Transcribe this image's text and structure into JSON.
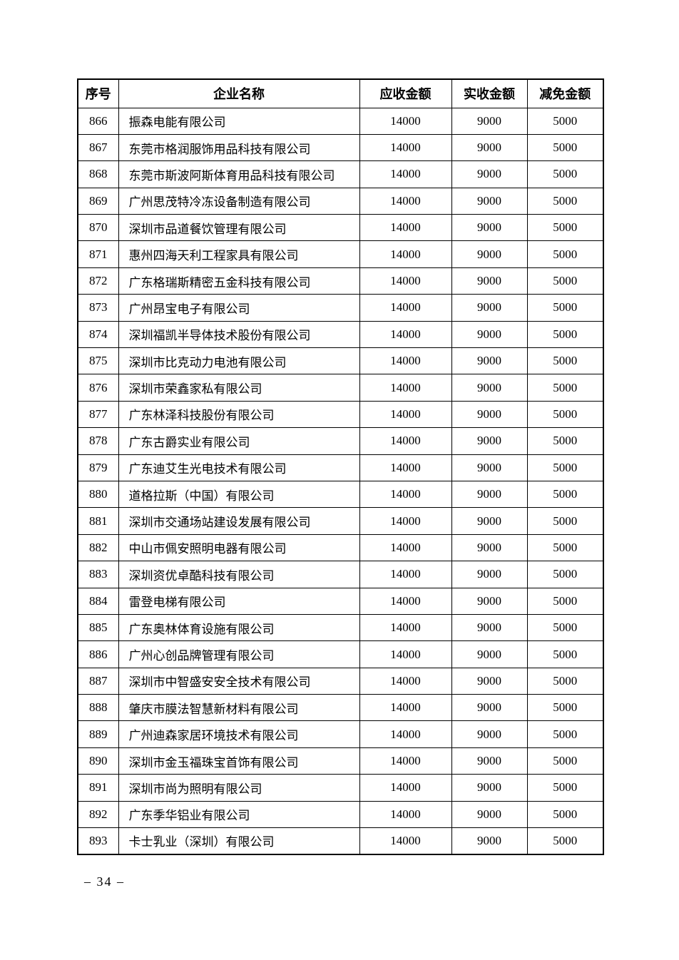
{
  "table": {
    "headers": [
      "序号",
      "企业名称",
      "应收金额",
      "实收金额",
      "减免金额"
    ],
    "rows": [
      {
        "no": "866",
        "company": "振森电能有限公司",
        "receivable": "14000",
        "received": "9000",
        "reduction": "5000"
      },
      {
        "no": "867",
        "company": "东莞市格润服饰用品科技有限公司",
        "receivable": "14000",
        "received": "9000",
        "reduction": "5000"
      },
      {
        "no": "868",
        "company": "东莞市斯波阿斯体育用品科技有限公司",
        "receivable": "14000",
        "received": "9000",
        "reduction": "5000"
      },
      {
        "no": "869",
        "company": "广州思茂特冷冻设备制造有限公司",
        "receivable": "14000",
        "received": "9000",
        "reduction": "5000"
      },
      {
        "no": "870",
        "company": "深圳市品道餐饮管理有限公司",
        "receivable": "14000",
        "received": "9000",
        "reduction": "5000"
      },
      {
        "no": "871",
        "company": "惠州四海天利工程家具有限公司",
        "receivable": "14000",
        "received": "9000",
        "reduction": "5000"
      },
      {
        "no": "872",
        "company": "广东格瑞斯精密五金科技有限公司",
        "receivable": "14000",
        "received": "9000",
        "reduction": "5000"
      },
      {
        "no": "873",
        "company": "广州昂宝电子有限公司",
        "receivable": "14000",
        "received": "9000",
        "reduction": "5000"
      },
      {
        "no": "874",
        "company": "深圳福凯半导体技术股份有限公司",
        "receivable": "14000",
        "received": "9000",
        "reduction": "5000"
      },
      {
        "no": "875",
        "company": "深圳市比克动力电池有限公司",
        "receivable": "14000",
        "received": "9000",
        "reduction": "5000"
      },
      {
        "no": "876",
        "company": "深圳市荣鑫家私有限公司",
        "receivable": "14000",
        "received": "9000",
        "reduction": "5000"
      },
      {
        "no": "877",
        "company": "广东林泽科技股份有限公司",
        "receivable": "14000",
        "received": "9000",
        "reduction": "5000"
      },
      {
        "no": "878",
        "company": "广东古爵实业有限公司",
        "receivable": "14000",
        "received": "9000",
        "reduction": "5000"
      },
      {
        "no": "879",
        "company": "广东迪艾生光电技术有限公司",
        "receivable": "14000",
        "received": "9000",
        "reduction": "5000"
      },
      {
        "no": "880",
        "company": "道格拉斯（中国）有限公司",
        "receivable": "14000",
        "received": "9000",
        "reduction": "5000"
      },
      {
        "no": "881",
        "company": "深圳市交通场站建设发展有限公司",
        "receivable": "14000",
        "received": "9000",
        "reduction": "5000"
      },
      {
        "no": "882",
        "company": "中山市佩安照明电器有限公司",
        "receivable": "14000",
        "received": "9000",
        "reduction": "5000"
      },
      {
        "no": "883",
        "company": "深圳资优卓酷科技有限公司",
        "receivable": "14000",
        "received": "9000",
        "reduction": "5000"
      },
      {
        "no": "884",
        "company": "雷登电梯有限公司",
        "receivable": "14000",
        "received": "9000",
        "reduction": "5000"
      },
      {
        "no": "885",
        "company": "广东奥林体育设施有限公司",
        "receivable": "14000",
        "received": "9000",
        "reduction": "5000"
      },
      {
        "no": "886",
        "company": "广州心创品牌管理有限公司",
        "receivable": "14000",
        "received": "9000",
        "reduction": "5000"
      },
      {
        "no": "887",
        "company": "深圳市中智盛安安全技术有限公司",
        "receivable": "14000",
        "received": "9000",
        "reduction": "5000"
      },
      {
        "no": "888",
        "company": "肇庆市膜法智慧新材料有限公司",
        "receivable": "14000",
        "received": "9000",
        "reduction": "5000"
      },
      {
        "no": "889",
        "company": "广州迪森家居环境技术有限公司",
        "receivable": "14000",
        "received": "9000",
        "reduction": "5000"
      },
      {
        "no": "890",
        "company": "深圳市金玉福珠宝首饰有限公司",
        "receivable": "14000",
        "received": "9000",
        "reduction": "5000"
      },
      {
        "no": "891",
        "company": "深圳市尚为照明有限公司",
        "receivable": "14000",
        "received": "9000",
        "reduction": "5000"
      },
      {
        "no": "892",
        "company": "广东季华铝业有限公司",
        "receivable": "14000",
        "received": "9000",
        "reduction": "5000"
      },
      {
        "no": "893",
        "company": "卡士乳业（深圳）有限公司",
        "receivable": "14000",
        "received": "9000",
        "reduction": "5000"
      }
    ]
  },
  "footer": {
    "page_number": "– 34 –"
  }
}
